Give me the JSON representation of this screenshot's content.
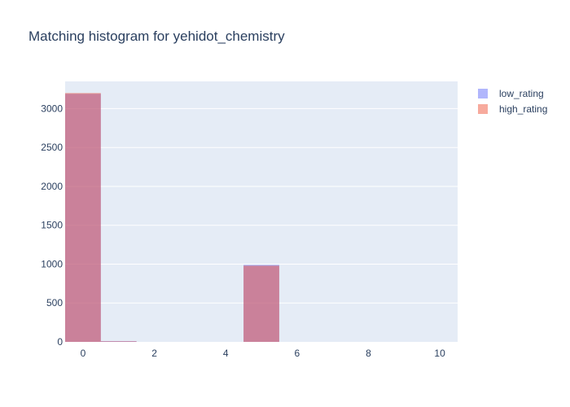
{
  "chart_data": {
    "type": "bar",
    "title": "Matching histogram for yehidot_chemistry",
    "xlabel": "",
    "ylabel": "",
    "x_ticks": [
      0,
      2,
      4,
      6,
      8,
      10
    ],
    "y_ticks": [
      0,
      500,
      1000,
      1500,
      2000,
      2500,
      3000
    ],
    "xlim": [
      -0.5,
      10.5
    ],
    "ylim": [
      0,
      3350
    ],
    "bin_width": 1,
    "bins": [
      0,
      1,
      2,
      3,
      4,
      5,
      6,
      7,
      8,
      9,
      10
    ],
    "series": [
      {
        "name": "low_rating",
        "color": "#636efa",
        "opacity": 0.5,
        "values": [
          3190,
          10,
          0,
          0,
          0,
          990,
          0,
          0,
          0,
          0,
          0
        ]
      },
      {
        "name": "high_rating",
        "color": "#ef553b",
        "opacity": 0.5,
        "values": [
          3200,
          8,
          0,
          0,
          0,
          980,
          0,
          0,
          0,
          0,
          0
        ]
      }
    ],
    "legend_position": "top-right",
    "grid": true,
    "plot_background": "#e5ecf6"
  }
}
